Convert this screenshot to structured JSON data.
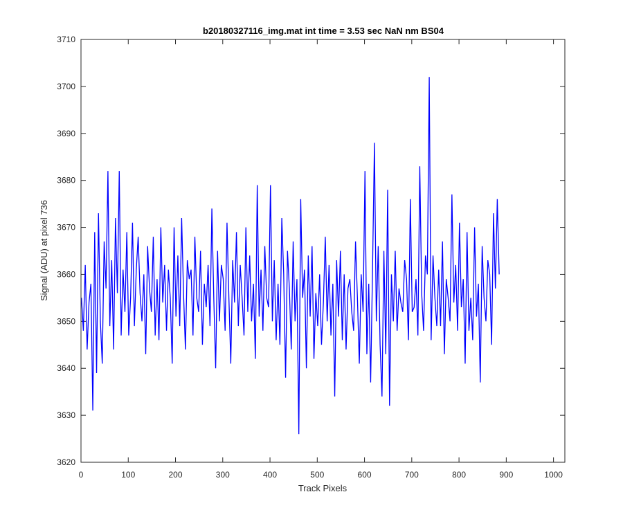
{
  "chart_data": {
    "type": "line",
    "title": "b20180327116_img.mat int time = 3.53 sec  NaN nm BS04",
    "xlabel": "Track Pixels",
    "ylabel": "Signal (ADU) at pixel 736",
    "xlim": [
      0,
      1024
    ],
    "ylim": [
      3620,
      3710
    ],
    "xticks": [
      0,
      100,
      200,
      300,
      400,
      500,
      600,
      700,
      800,
      900,
      1000
    ],
    "yticks": [
      3620,
      3630,
      3640,
      3650,
      3660,
      3670,
      3680,
      3690,
      3700,
      3710
    ],
    "grid": false,
    "legend": "none",
    "series_color": "#0000ff",
    "series": [
      {
        "x_step": 4,
        "x_start": 1,
        "values": [
          3655,
          3648,
          3662,
          3644,
          3654,
          3658,
          3631,
          3669,
          3639,
          3673,
          3650,
          3641,
          3667,
          3657,
          3682,
          3649,
          3663,
          3644,
          3672,
          3656,
          3682,
          3647,
          3661,
          3652,
          3669,
          3647,
          3655,
          3671,
          3649,
          3661,
          3668,
          3656,
          3650,
          3660,
          3643,
          3666,
          3657,
          3652,
          3668,
          3647,
          3659,
          3646,
          3670,
          3654,
          3662,
          3648,
          3661,
          3655,
          3641,
          3670,
          3651,
          3664,
          3649,
          3672,
          3656,
          3644,
          3663,
          3659,
          3661,
          3647,
          3668,
          3655,
          3652,
          3665,
          3645,
          3658,
          3653,
          3662,
          3649,
          3674,
          3655,
          3640,
          3665,
          3650,
          3662,
          3659,
          3648,
          3671,
          3655,
          3641,
          3663,
          3654,
          3669,
          3649,
          3662,
          3655,
          3647,
          3670,
          3652,
          3664,
          3650,
          3658,
          3642,
          3679,
          3651,
          3661,
          3648,
          3666,
          3655,
          3653,
          3679,
          3650,
          3663,
          3646,
          3658,
          3645,
          3672,
          3660,
          3638,
          3665,
          3657,
          3644,
          3667,
          3650,
          3659,
          3626,
          3676,
          3655,
          3661,
          3640,
          3664,
          3651,
          3666,
          3642,
          3656,
          3649,
          3660,
          3645,
          3654,
          3668,
          3650,
          3662,
          3647,
          3658,
          3634,
          3663,
          3651,
          3665,
          3646,
          3660,
          3644,
          3657,
          3659,
          3652,
          3648,
          3667,
          3655,
          3641,
          3660,
          3652,
          3682,
          3643,
          3658,
          3637,
          3661,
          3688,
          3650,
          3666,
          3645,
          3634,
          3665,
          3643,
          3678,
          3632,
          3660,
          3650,
          3665,
          3648,
          3657,
          3654,
          3652,
          3663,
          3659,
          3646,
          3676,
          3652,
          3653,
          3659,
          3647,
          3683,
          3656,
          3648,
          3664,
          3660,
          3702,
          3646,
          3664,
          3655,
          3649,
          3661,
          3649,
          3667,
          3643,
          3659,
          3655,
          3650,
          3677,
          3654,
          3662,
          3648,
          3671,
          3653,
          3659,
          3641,
          3669,
          3648,
          3655,
          3646,
          3670,
          3651,
          3658,
          3637,
          3666,
          3655,
          3650,
          3663,
          3660,
          3645,
          3673,
          3657,
          3676,
          3660
        ]
      }
    ]
  }
}
